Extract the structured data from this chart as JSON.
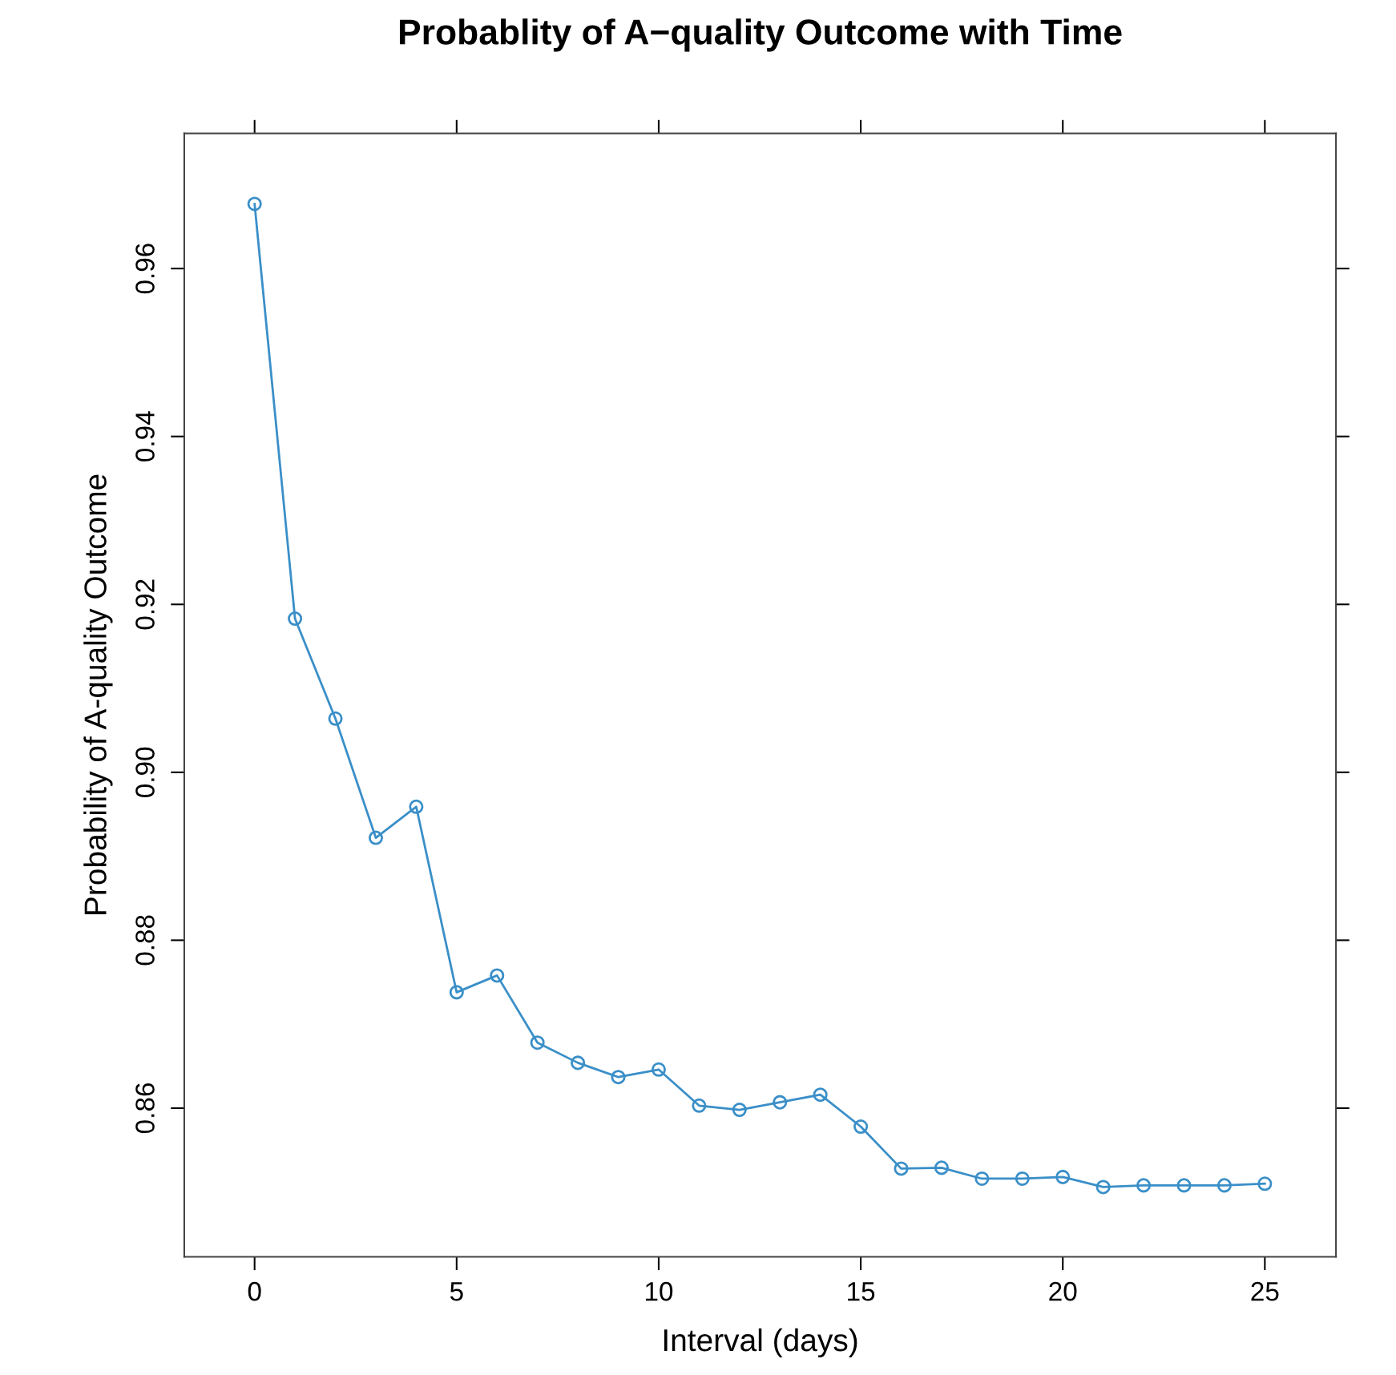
{
  "chart_data": {
    "type": "line",
    "title": "Probablity of A−quality Outcome with Time",
    "xlabel": "Interval (days)",
    "ylabel": "Probability of A-quality Outcome",
    "x": [
      0,
      1,
      2,
      3,
      4,
      5,
      6,
      7,
      8,
      9,
      10,
      11,
      12,
      13,
      14,
      15,
      16,
      17,
      18,
      19,
      20,
      21,
      22,
      23,
      24,
      25
    ],
    "series": [
      {
        "color": "#3a8fc8",
        "values": [
          0.9677,
          0.9183,
          0.9064,
          0.8922,
          0.8959,
          0.8738,
          0.8758,
          0.8678,
          0.8654,
          0.8637,
          0.8646,
          0.8603,
          0.8598,
          0.8607,
          0.8616,
          0.8578,
          0.8528,
          0.8529,
          0.8516,
          0.8516,
          0.8518,
          0.8506,
          0.8508,
          0.8508,
          0.8508,
          0.851
        ]
      }
    ],
    "xlim": [
      -1.74,
      26.76
    ],
    "ylim": [
      0.8423,
      0.9761
    ],
    "xticks": [
      0,
      5,
      10,
      15,
      20,
      25
    ],
    "yticks": [
      {
        "value": 0.86,
        "label": "0.86"
      },
      {
        "value": 0.88,
        "label": "0.88"
      },
      {
        "value": 0.9,
        "label": "0.90"
      },
      {
        "value": 0.92,
        "label": "0.92"
      },
      {
        "value": 0.94,
        "label": "0.94"
      },
      {
        "value": 0.96,
        "label": "0.96"
      }
    ],
    "marker": "circle",
    "line_style": "solid",
    "grid": false,
    "legend": false
  }
}
